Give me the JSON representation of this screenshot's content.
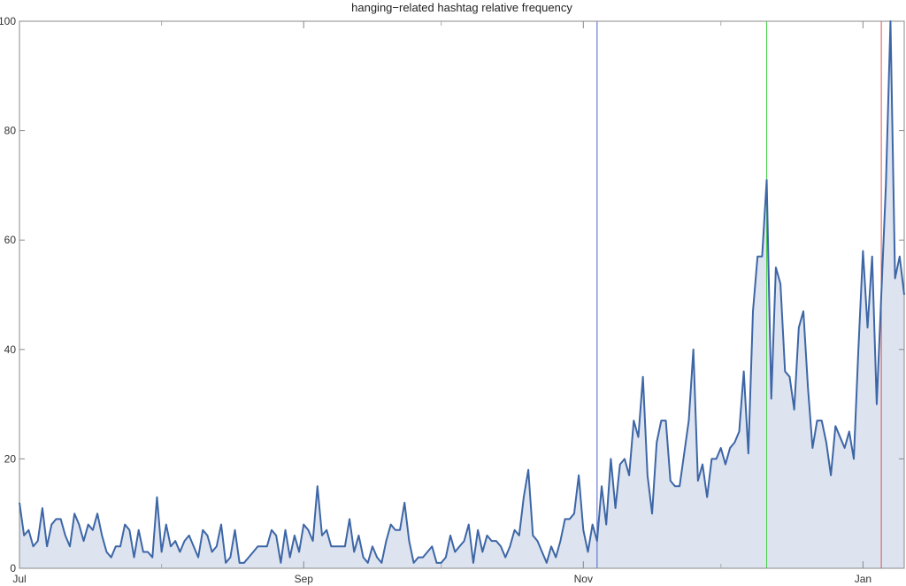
{
  "chart_data": {
    "type": "area",
    "title": "hanging−related hashtag relative frequency",
    "xlabel": "",
    "ylabel": "",
    "x_start": "Jul 1",
    "x_step": "1 day",
    "x_ticks": [
      "Jul",
      "Sep",
      "Nov",
      "Jan"
    ],
    "y_ticks": [
      "0",
      "20",
      "40",
      "60",
      "80",
      "100"
    ],
    "ylim": [
      0,
      100
    ],
    "grid": false,
    "legend": "none",
    "vertical_markers": [
      {
        "date": "Nov 4",
        "color": "#5060c8"
      },
      {
        "date": "Dec 11",
        "color": "#40d040"
      },
      {
        "date": "Jan 5",
        "color": "#e05050"
      }
    ],
    "series": [
      {
        "line_color": "#3d66a6",
        "fill_color": "#dde4f0",
        "values": [
          12,
          6,
          7,
          4,
          5,
          11,
          4,
          8,
          9,
          9,
          6,
          4,
          10,
          8,
          5,
          8,
          7,
          10,
          6,
          3,
          2,
          4,
          4,
          8,
          7,
          2,
          7,
          3,
          3,
          2,
          13,
          3,
          8,
          4,
          5,
          3,
          5,
          6,
          4,
          2,
          7,
          6,
          3,
          4,
          8,
          1,
          2,
          7,
          1,
          1,
          2,
          3,
          4,
          4,
          4,
          7,
          6,
          1,
          7,
          2,
          6,
          3,
          8,
          7,
          5,
          15,
          6,
          7,
          4,
          4,
          4,
          4,
          9,
          3,
          6,
          2,
          1,
          4,
          2,
          1,
          5,
          8,
          7,
          7,
          12,
          5,
          1,
          2,
          2,
          3,
          4,
          1,
          1,
          2,
          6,
          3,
          4,
          5,
          8,
          1,
          7,
          3,
          6,
          5,
          5,
          4,
          2,
          4,
          7,
          6,
          13,
          18,
          6,
          5,
          3,
          1,
          4,
          2,
          5,
          9,
          9,
          10,
          17,
          7,
          3,
          8,
          5,
          15,
          8,
          20,
          11,
          19,
          20,
          17,
          27,
          24,
          35,
          17,
          10,
          23,
          27,
          27,
          16,
          15,
          15,
          21,
          27,
          40,
          16,
          19,
          13,
          20,
          20,
          22,
          19,
          22,
          23,
          25,
          36,
          21,
          47,
          57,
          57,
          71,
          31,
          55,
          52,
          36,
          35,
          29,
          44,
          47,
          33,
          22,
          27,
          27,
          23,
          17,
          26,
          24,
          22,
          25,
          20,
          40,
          58,
          44,
          57,
          30,
          50,
          70,
          100,
          53,
          57,
          50
        ]
      }
    ]
  }
}
